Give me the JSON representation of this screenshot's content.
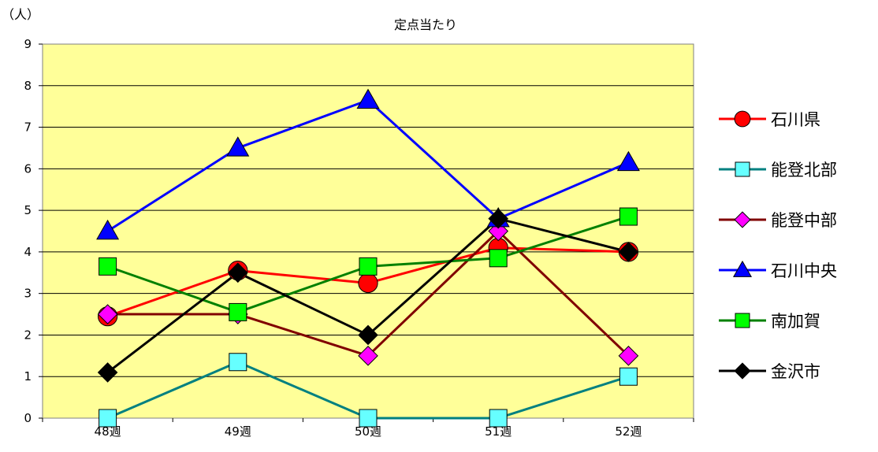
{
  "chart_data": {
    "type": "line",
    "title": "定点当たり",
    "ylabel": "（人）",
    "xlabel": "",
    "categories": [
      "48週",
      "49週",
      "50週",
      "51週",
      "52週"
    ],
    "ylim": [
      0,
      9
    ],
    "yticks": [
      "0",
      "1",
      "2",
      "3",
      "4",
      "5",
      "6",
      "7",
      "8",
      "9"
    ],
    "grid": true,
    "legend_position": "right",
    "plot_background": "#FFFF99",
    "series": [
      {
        "name": "石川県",
        "values": [
          2.45,
          3.55,
          3.25,
          4.1,
          4.0
        ],
        "color": "#FF0000",
        "marker": "circle",
        "marker_fill": "#FF0000"
      },
      {
        "name": "能登北部",
        "values": [
          0,
          1.35,
          0,
          0,
          1.0
        ],
        "color": "#008080",
        "marker": "square",
        "marker_fill": "#66FFFF"
      },
      {
        "name": "能登中部",
        "values": [
          2.5,
          2.5,
          1.5,
          4.5,
          1.5
        ],
        "color": "#800000",
        "marker": "diamond",
        "marker_fill": "#FF00FF"
      },
      {
        "name": "石川中央",
        "values": [
          4.5,
          6.5,
          7.65,
          4.8,
          6.15
        ],
        "color": "#0000FF",
        "marker": "triangle",
        "marker_fill": "#0000FF"
      },
      {
        "name": "南加賀",
        "values": [
          3.65,
          2.55,
          3.65,
          3.85,
          4.85
        ],
        "color": "#008000",
        "marker": "square",
        "marker_fill": "#00FF00"
      },
      {
        "name": "金沢市",
        "values": [
          1.1,
          3.5,
          2.0,
          4.8,
          4.0
        ],
        "color": "#000000",
        "marker": "diamond",
        "marker_fill": "#000000"
      }
    ]
  }
}
